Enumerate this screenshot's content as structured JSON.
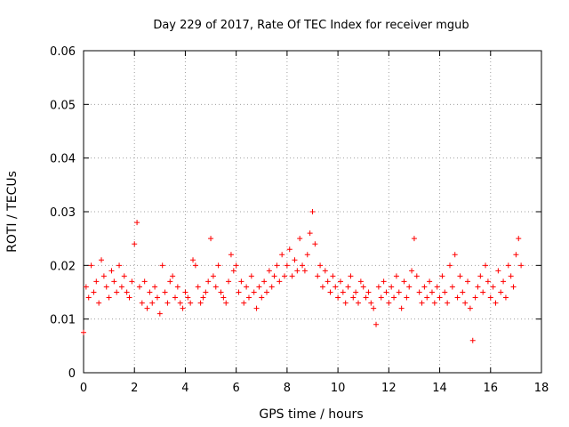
{
  "chart_data": {
    "type": "scatter",
    "title": "Day 229 of 2017, Rate Of TEC Index for receiver mgub",
    "xlabel": "GPS time / hours",
    "ylabel": "ROTI / TECUs",
    "xlim": [
      0,
      18
    ],
    "ylim": [
      0,
      0.06
    ],
    "xticks": [
      0,
      2,
      4,
      6,
      8,
      10,
      12,
      14,
      16,
      18
    ],
    "xtick_labels": [
      "0",
      "2",
      "4",
      "6",
      "8",
      "10",
      "12",
      "14",
      "16",
      "18"
    ],
    "yticks": [
      0,
      0.01,
      0.02,
      0.03,
      0.04,
      0.05,
      0.06
    ],
    "ytick_labels": [
      "0",
      "0.01",
      "0.02",
      "0.03",
      "0.04",
      "0.05",
      "0.06"
    ],
    "grid": true,
    "marker": "+",
    "series": [
      {
        "name": "ROTI",
        "color": "#ff0000",
        "x": [
          0.0,
          0.1,
          0.2,
          0.3,
          0.4,
          0.5,
          0.6,
          0.7,
          0.8,
          0.9,
          1.0,
          1.1,
          1.2,
          1.3,
          1.4,
          1.5,
          1.6,
          1.7,
          1.8,
          1.9,
          2.0,
          2.1,
          2.2,
          2.3,
          2.4,
          2.5,
          2.6,
          2.7,
          2.8,
          2.9,
          3.0,
          3.1,
          3.2,
          3.3,
          3.4,
          3.5,
          3.6,
          3.7,
          3.8,
          3.9,
          4.0,
          4.1,
          4.2,
          4.3,
          4.4,
          4.5,
          4.6,
          4.7,
          4.8,
          4.9,
          5.0,
          5.1,
          5.2,
          5.3,
          5.4,
          5.5,
          5.6,
          5.7,
          5.8,
          5.9,
          6.0,
          6.1,
          6.2,
          6.3,
          6.4,
          6.5,
          6.6,
          6.7,
          6.8,
          6.9,
          7.0,
          7.1,
          7.2,
          7.3,
          7.4,
          7.5,
          7.6,
          7.7,
          7.8,
          7.9,
          8.0,
          8.1,
          8.2,
          8.3,
          8.4,
          8.5,
          8.6,
          8.7,
          8.8,
          8.9,
          9.0,
          9.1,
          9.2,
          9.3,
          9.4,
          9.5,
          9.6,
          9.7,
          9.8,
          9.9,
          10.0,
          10.1,
          10.2,
          10.3,
          10.4,
          10.5,
          10.6,
          10.7,
          10.8,
          10.9,
          11.0,
          11.1,
          11.2,
          11.3,
          11.4,
          11.5,
          11.6,
          11.7,
          11.8,
          11.9,
          12.0,
          12.1,
          12.2,
          12.3,
          12.4,
          12.5,
          12.6,
          12.7,
          12.8,
          12.9,
          13.0,
          13.1,
          13.2,
          13.3,
          13.4,
          13.5,
          13.6,
          13.7,
          13.8,
          13.9,
          14.0,
          14.1,
          14.2,
          14.3,
          14.4,
          14.5,
          14.6,
          14.7,
          14.8,
          14.9,
          15.0,
          15.1,
          15.2,
          15.3,
          15.4,
          15.5,
          15.6,
          15.7,
          15.8,
          15.9,
          16.0,
          16.1,
          16.2,
          16.3,
          16.4,
          16.5,
          16.6,
          16.7,
          16.8,
          16.9,
          17.0,
          17.1,
          17.2
        ],
        "y": [
          0.0075,
          0.016,
          0.014,
          0.02,
          0.015,
          0.017,
          0.013,
          0.021,
          0.018,
          0.016,
          0.014,
          0.019,
          0.017,
          0.015,
          0.02,
          0.016,
          0.018,
          0.015,
          0.014,
          0.017,
          0.024,
          0.028,
          0.016,
          0.013,
          0.017,
          0.012,
          0.015,
          0.013,
          0.016,
          0.014,
          0.011,
          0.02,
          0.015,
          0.013,
          0.017,
          0.018,
          0.014,
          0.016,
          0.013,
          0.012,
          0.015,
          0.014,
          0.013,
          0.021,
          0.02,
          0.016,
          0.013,
          0.014,
          0.015,
          0.017,
          0.025,
          0.018,
          0.016,
          0.02,
          0.015,
          0.014,
          0.013,
          0.017,
          0.022,
          0.019,
          0.02,
          0.015,
          0.017,
          0.013,
          0.016,
          0.014,
          0.018,
          0.015,
          0.012,
          0.016,
          0.014,
          0.017,
          0.015,
          0.019,
          0.016,
          0.018,
          0.02,
          0.017,
          0.022,
          0.018,
          0.02,
          0.023,
          0.018,
          0.021,
          0.019,
          0.025,
          0.02,
          0.019,
          0.022,
          0.026,
          0.03,
          0.024,
          0.018,
          0.02,
          0.016,
          0.019,
          0.017,
          0.015,
          0.018,
          0.016,
          0.014,
          0.017,
          0.015,
          0.013,
          0.016,
          0.018,
          0.014,
          0.015,
          0.013,
          0.017,
          0.016,
          0.014,
          0.015,
          0.013,
          0.012,
          0.009,
          0.016,
          0.014,
          0.017,
          0.015,
          0.013,
          0.016,
          0.014,
          0.018,
          0.015,
          0.012,
          0.017,
          0.014,
          0.016,
          0.019,
          0.025,
          0.018,
          0.015,
          0.013,
          0.016,
          0.014,
          0.017,
          0.015,
          0.013,
          0.016,
          0.014,
          0.018,
          0.015,
          0.013,
          0.02,
          0.016,
          0.022,
          0.014,
          0.018,
          0.015,
          0.013,
          0.017,
          0.012,
          0.006,
          0.014,
          0.016,
          0.018,
          0.015,
          0.02,
          0.017,
          0.014,
          0.016,
          0.013,
          0.019,
          0.015,
          0.017,
          0.014,
          0.02,
          0.018,
          0.016,
          0.022,
          0.025,
          0.02
        ]
      }
    ]
  }
}
